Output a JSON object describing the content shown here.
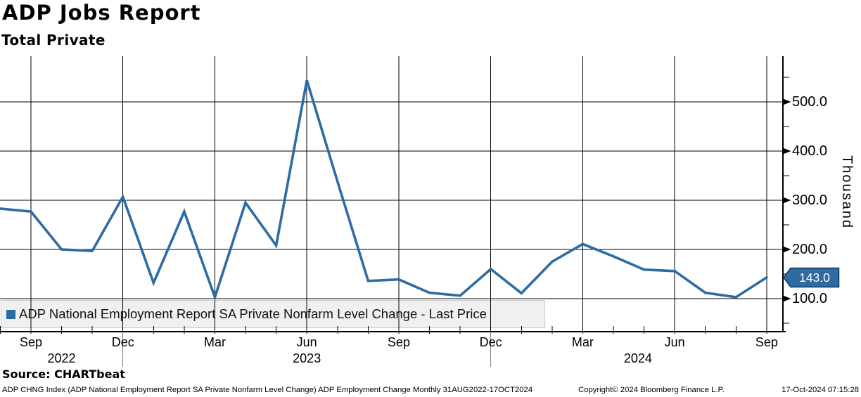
{
  "header": {
    "title": "ADP Jobs Report",
    "subtitle": "Total Private"
  },
  "colors": {
    "line": "#2d6ba3",
    "legend_marker": "#2d6ba3",
    "flag_fill": "#2d6ba3",
    "flag_border": "#16395c",
    "flag_text": "#ffffff",
    "grid": "#000000",
    "axis": "#000000",
    "year_separator": "#7f7f7f",
    "legend_bg": "#f0f0f0",
    "legend_border": "#c9c9c9"
  },
  "chart_data": {
    "type": "line",
    "title": "ADP Jobs Report - Total Private",
    "series_name": "ADP National Employment Report SA Private Nonfarm Level Change - Last Price",
    "x": [
      "Aug 2022",
      "Sep 2022",
      "Oct 2022",
      "Nov 2022",
      "Dec 2022",
      "Jan 2023",
      "Feb 2023",
      "Mar 2023",
      "Apr 2023",
      "May 2023",
      "Jun 2023",
      "Jul 2023",
      "Aug 2023",
      "Sep 2023",
      "Oct 2023",
      "Nov 2023",
      "Dec 2023",
      "Jan 2024",
      "Feb 2024",
      "Mar 2024",
      "Apr 2024",
      "May 2024",
      "Jun 2024",
      "Jul 2024",
      "Aug 2024",
      "Sep 2024"
    ],
    "values": [
      283,
      277,
      200,
      197,
      307,
      132,
      277,
      103,
      295,
      208,
      544,
      338,
      136,
      139,
      112,
      106,
      160,
      111,
      175,
      211,
      186,
      159,
      156,
      112,
      103,
      143
    ],
    "xlabel": "",
    "ylabel": "Thousand",
    "ylim": [
      33,
      593
    ],
    "grid": true,
    "legend_position": "bottom-left-inside",
    "y_major_ticks": [
      500,
      400,
      300,
      200,
      100
    ],
    "y_major_tick_labels": [
      "500.0",
      "400.0",
      "300.0",
      "200.0",
      "100.0"
    ],
    "y_minor_ticks": [
      550,
      450,
      350,
      250,
      150,
      50
    ],
    "x_tick_labels": [
      {
        "label": "Sep",
        "index": 1
      },
      {
        "label": "Dec",
        "index": 4
      },
      {
        "label": "Mar",
        "index": 7
      },
      {
        "label": "Jun",
        "index": 10
      },
      {
        "label": "Sep",
        "index": 13
      },
      {
        "label": "Dec",
        "index": 16
      },
      {
        "label": "Mar",
        "index": 19
      },
      {
        "label": "Jun",
        "index": 22
      },
      {
        "label": "Sep",
        "index": 25
      }
    ],
    "year_labels": [
      {
        "label": "2022",
        "index": 2
      },
      {
        "label": "2023",
        "index": 10
      },
      {
        "label": "2024",
        "index": 20.8
      }
    ],
    "year_separator_indices": [
      4,
      16
    ]
  },
  "last_price": {
    "label": "143.0",
    "value": 143.0
  },
  "legend": {
    "label": "ADP National Employment Report SA Private Nonfarm Level Change - Last Price"
  },
  "axis": {
    "y_title": "Thousand"
  },
  "footer": {
    "source": "Source: CHARTbeat",
    "description": "ADP CHNG Index (ADP National Employment Report SA Private Nonfarm Level Change) ADP Employment Change  Monthly 31AUG2022-17OCT2024",
    "copyright": "Copyright© 2024 Bloomberg Finance L.P.",
    "timestamp": "17-Oct-2024 07:15:28"
  }
}
